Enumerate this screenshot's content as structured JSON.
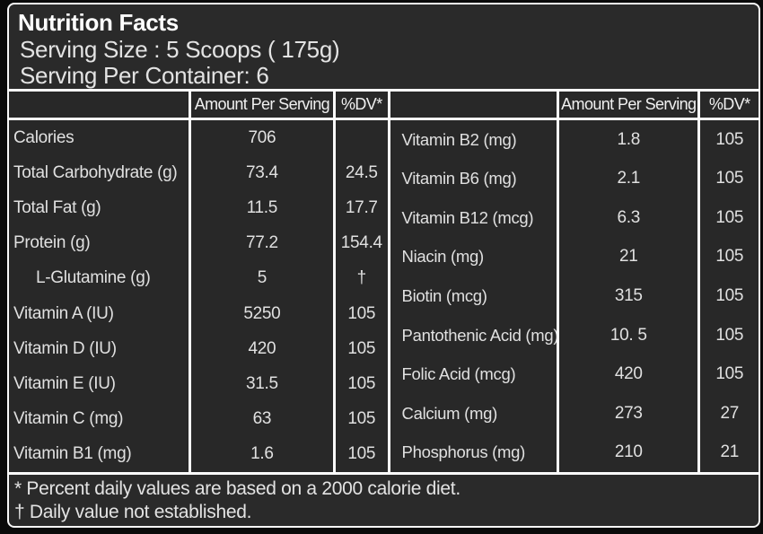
{
  "header": {
    "title": "Nutrition Facts",
    "serving_size": "Serving Size : 5 Scoops ( 175g)",
    "serving_per_container": "Serving Per Container: 6"
  },
  "column_headers": {
    "amount": "Amount Per Serving",
    "dv": "%DV*"
  },
  "left_table": {
    "rows": [
      {
        "label": "Calories",
        "amount": "706",
        "dv": "",
        "indent": false
      },
      {
        "label": "Total Carbohydrate (g)",
        "amount": "73.4",
        "dv": "24.5",
        "indent": false
      },
      {
        "label": "Total Fat (g)",
        "amount": "11.5",
        "dv": "17.7",
        "indent": false
      },
      {
        "label": "Protein (g)",
        "amount": "77.2",
        "dv": "154.4",
        "indent": false
      },
      {
        "label": "L-Glutamine (g)",
        "amount": "5",
        "dv": "†",
        "indent": true
      },
      {
        "label": "Vitamin A (IU)",
        "amount": "5250",
        "dv": "105",
        "indent": false
      },
      {
        "label": "Vitamin D (IU)",
        "amount": "420",
        "dv": "105",
        "indent": false
      },
      {
        "label": "Vitamin E (IU)",
        "amount": "31.5",
        "dv": "105",
        "indent": false
      },
      {
        "label": "Vitamin C (mg)",
        "amount": "63",
        "dv": "105",
        "indent": false
      },
      {
        "label": "Vitamin B1 (mg)",
        "amount": "1.6",
        "dv": "105",
        "indent": false
      }
    ]
  },
  "right_table": {
    "rows": [
      {
        "label": "Vitamin B2 (mg)",
        "amount": "1.8",
        "dv": "105",
        "indent": false
      },
      {
        "label": "Vitamin B6 (mg)",
        "amount": "2.1",
        "dv": "105",
        "indent": false
      },
      {
        "label": "Vitamin B12 (mcg)",
        "amount": "6.3",
        "dv": "105",
        "indent": false
      },
      {
        "label": "Niacin (mg)",
        "amount": "21",
        "dv": "105",
        "indent": false
      },
      {
        "label": "Biotin (mcg)",
        "amount": "315",
        "dv": "105",
        "indent": false
      },
      {
        "label": "Pantothenic Acid (mg)",
        "amount": "10. 5",
        "dv": "105",
        "indent": false
      },
      {
        "label": "Folic Acid (mcg)",
        "amount": "420",
        "dv": "105",
        "indent": false
      },
      {
        "label": "Calcium (mg)",
        "amount": "273",
        "dv": "27",
        "indent": false
      },
      {
        "label": "Phosphorus (mg)",
        "amount": "210",
        "dv": "21",
        "indent": false
      }
    ]
  },
  "footnotes": {
    "percent_note": "* Percent daily values are based on a 2000 calorie diet.",
    "dagger_note": "† Daily value not established."
  },
  "colors": {
    "background": "#0a0a0a",
    "panel": "#2a2a2a",
    "line": "#f8f8f8",
    "text": "#e0e0e0",
    "title": "#ffffff"
  }
}
